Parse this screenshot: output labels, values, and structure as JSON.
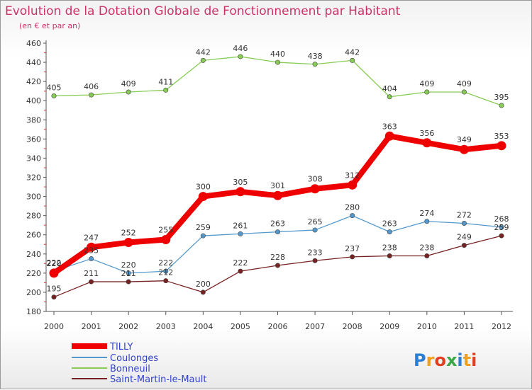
{
  "chart_data": {
    "type": "line",
    "title": "Evolution de la Dotation Globale de Fonctionnement par Habitant",
    "subtitle": "(en € et par an)",
    "xlabel": "",
    "ylabel": "",
    "categories": [
      "2000",
      "2001",
      "2002",
      "2003",
      "2004",
      "2005",
      "2006",
      "2007",
      "2008",
      "2009",
      "2010",
      "2011",
      "2012"
    ],
    "ylim": [
      180,
      460
    ],
    "yticks": [
      180,
      200,
      220,
      240,
      260,
      280,
      300,
      320,
      340,
      360,
      380,
      400,
      420,
      440,
      460
    ],
    "grid": false,
    "legend_position": "bottom-left",
    "series": [
      {
        "name": "TILLY",
        "color": "#ee0000",
        "values": [
          220,
          247,
          252,
          255,
          300,
          305,
          301,
          308,
          312,
          363,
          356,
          349,
          353
        ]
      },
      {
        "name": "Coulonges",
        "color": "#5599cc",
        "values": [
          222,
          235,
          220,
          222,
          259,
          261,
          263,
          265,
          280,
          263,
          274,
          272,
          268
        ]
      },
      {
        "name": "Bonneuil",
        "color": "#88cc55",
        "values": [
          405,
          406,
          409,
          411,
          442,
          446,
          440,
          438,
          442,
          404,
          409,
          409,
          395
        ]
      },
      {
        "name": "Saint-Martin-le-Mault",
        "color": "#772222",
        "values": [
          195,
          211,
          211,
          212,
          200,
          222,
          228,
          233,
          237,
          238,
          238,
          249,
          259
        ]
      }
    ]
  },
  "logo": {
    "text": "Proxiti"
  }
}
